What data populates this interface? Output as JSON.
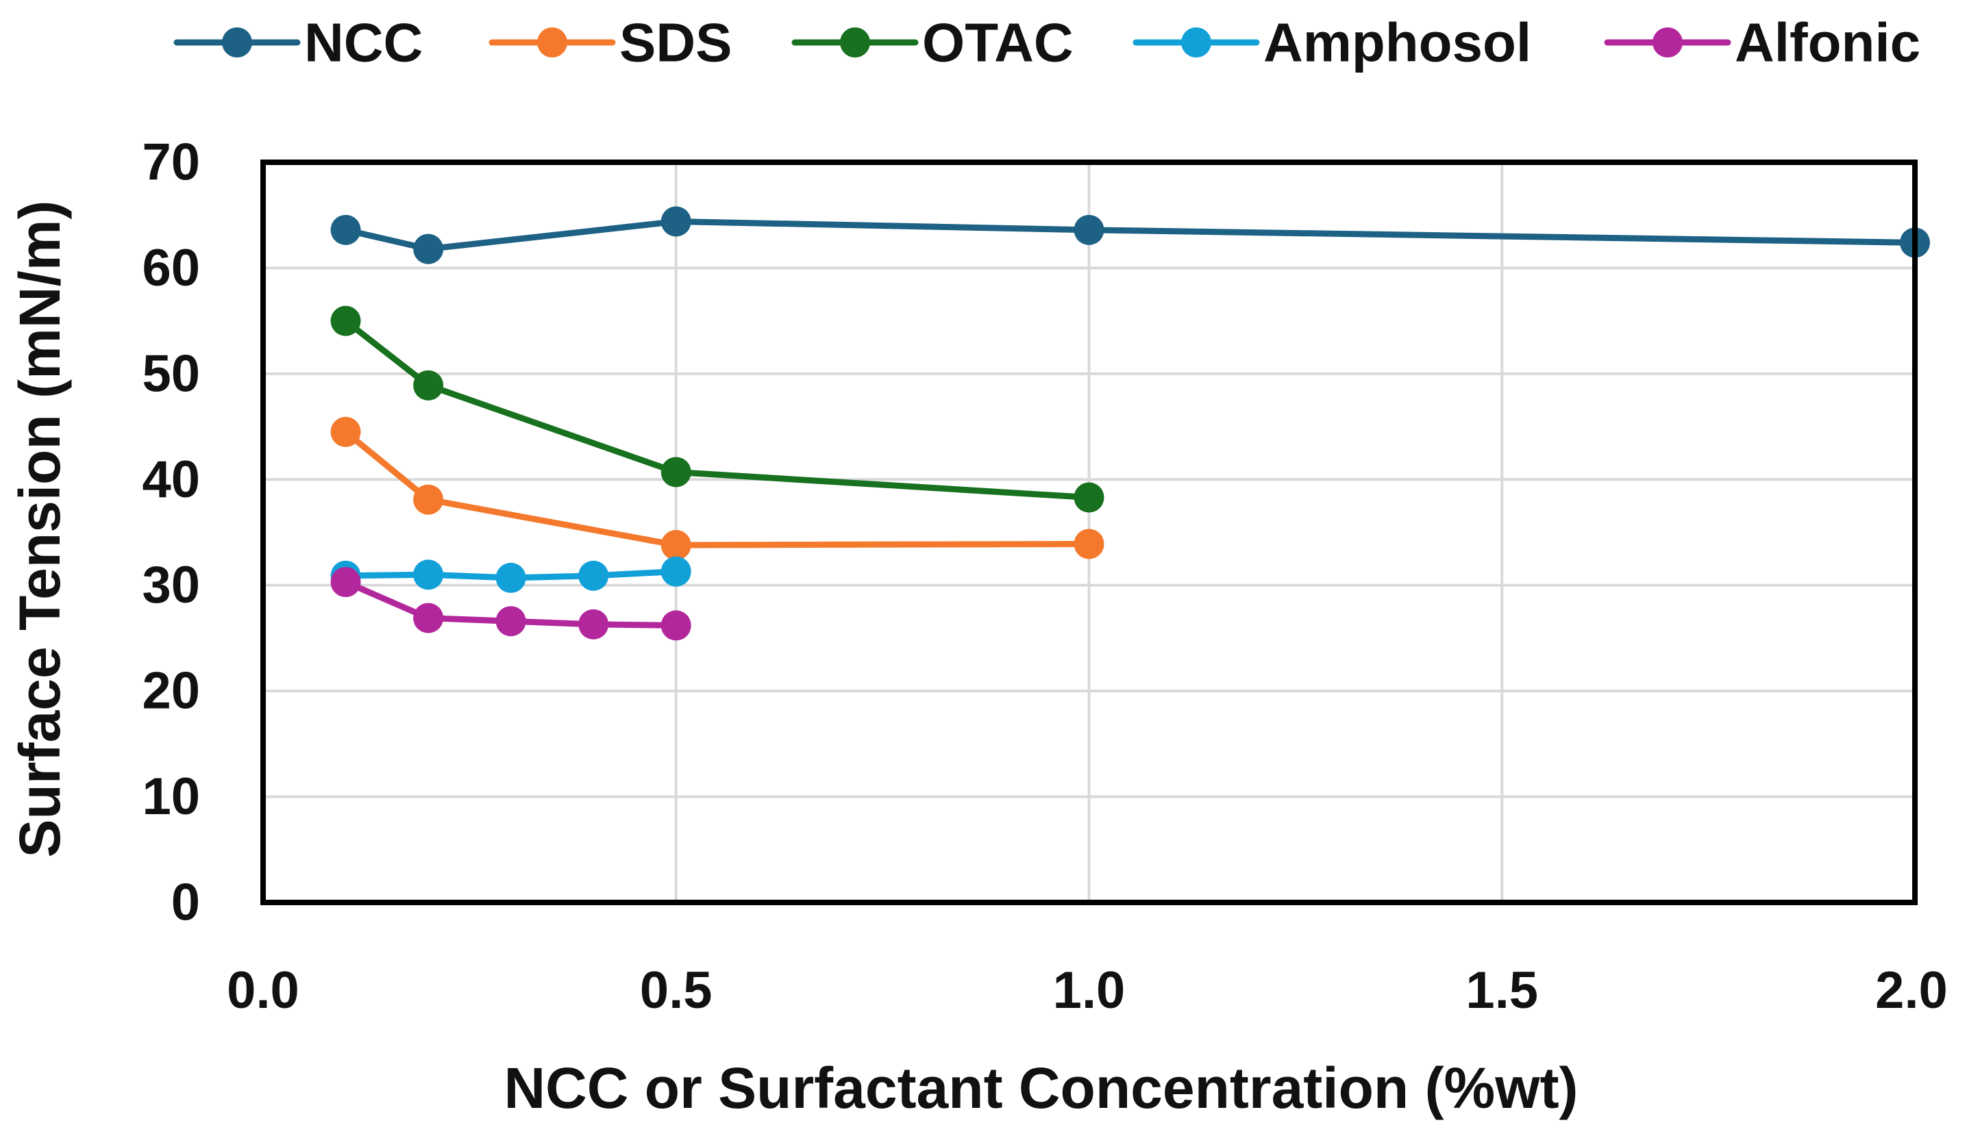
{
  "chart_data": {
    "type": "line",
    "title": "",
    "xlabel": "NCC or Surfactant Concentration (%wt)",
    "ylabel": "Surface Tension (mN/m)",
    "xlim": [
      0,
      2
    ],
    "ylim": [
      0,
      70
    ],
    "grid": true,
    "legend_position": "top",
    "x_ticks": [
      0,
      0.5,
      1,
      1.5,
      2
    ],
    "x_tick_labels": [
      "0.0",
      "0.5",
      "1.0",
      "1.5",
      "2.0"
    ],
    "y_ticks": [
      0,
      10,
      20,
      30,
      40,
      50,
      60,
      70
    ],
    "y_tick_labels": [
      "0",
      "10",
      "20",
      "30",
      "40",
      "50",
      "60",
      "70"
    ],
    "series": [
      {
        "name": "NCC",
        "color": "#1d6184",
        "x": [
          0.1,
          0.2,
          0.5,
          1.0,
          2.0
        ],
        "values": [
          63.6,
          61.8,
          64.4,
          63.6,
          62.4
        ]
      },
      {
        "name": "SDS",
        "color": "#f4792c",
        "x": [
          0.1,
          0.2,
          0.5,
          1.0
        ],
        "values": [
          44.5,
          38.1,
          33.8,
          33.9
        ]
      },
      {
        "name": "OTAC",
        "color": "#17711e",
        "x": [
          0.1,
          0.2,
          0.5,
          1.0
        ],
        "values": [
          55.0,
          48.9,
          40.7,
          38.3
        ]
      },
      {
        "name": "Amphosol",
        "color": "#12a0d8",
        "x": [
          0.1,
          0.2,
          0.3,
          0.4,
          0.5
        ],
        "values": [
          30.9,
          31.0,
          30.7,
          30.9,
          31.3
        ]
      },
      {
        "name": "Alfonic",
        "color": "#b3279d",
        "x": [
          0.1,
          0.2,
          0.3,
          0.4,
          0.5
        ],
        "values": [
          30.3,
          26.9,
          26.6,
          26.3,
          26.2
        ]
      }
    ]
  }
}
